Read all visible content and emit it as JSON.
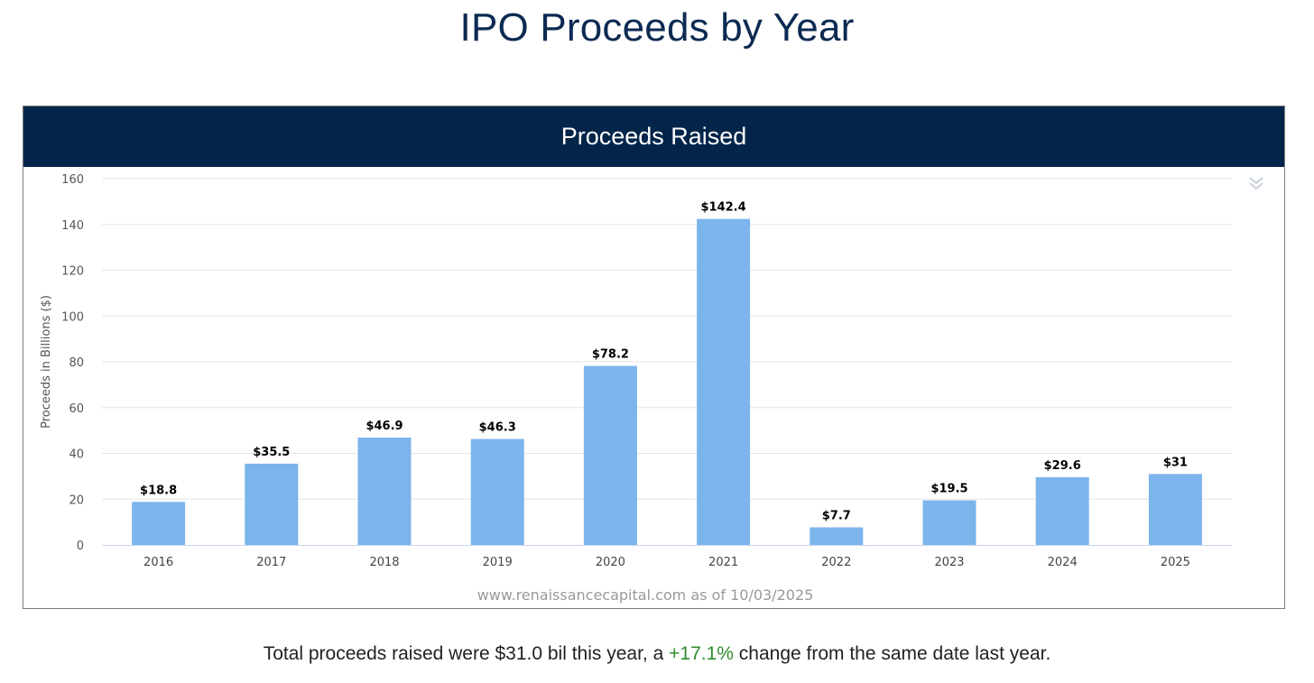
{
  "page": {
    "title": "IPO Proceeds by Year",
    "summary": {
      "prefix": "Total proceeds raised were $31.0 bil this year, a",
      "change": "+17.1%",
      "suffix": "change from the same date last year."
    }
  },
  "colors": {
    "bar": "#7cb4ec",
    "header": "#03254a",
    "positive": "#2e8b2e"
  },
  "chart_data": {
    "type": "bar",
    "title": "Proceeds Raised",
    "xlabel": "",
    "ylabel": "Proceeds in Billions ($)",
    "categories": [
      "2016",
      "2017",
      "2018",
      "2019",
      "2020",
      "2021",
      "2022",
      "2023",
      "2024",
      "2025"
    ],
    "values": [
      18.8,
      35.5,
      46.9,
      46.3,
      78.2,
      142.4,
      7.7,
      19.5,
      29.6,
      31
    ],
    "data_labels": [
      "$18.8",
      "$35.5",
      "$46.9",
      "$46.3",
      "$78.2",
      "$142.4",
      "$7.7",
      "$19.5",
      "$29.6",
      "$31"
    ],
    "ylim": [
      0,
      160
    ],
    "yticks": [
      0,
      20,
      40,
      60,
      80,
      100,
      120,
      140,
      160
    ],
    "grid": true,
    "legend": "none",
    "credits": "www.renaissancecapital.com as of 10/03/2025"
  }
}
